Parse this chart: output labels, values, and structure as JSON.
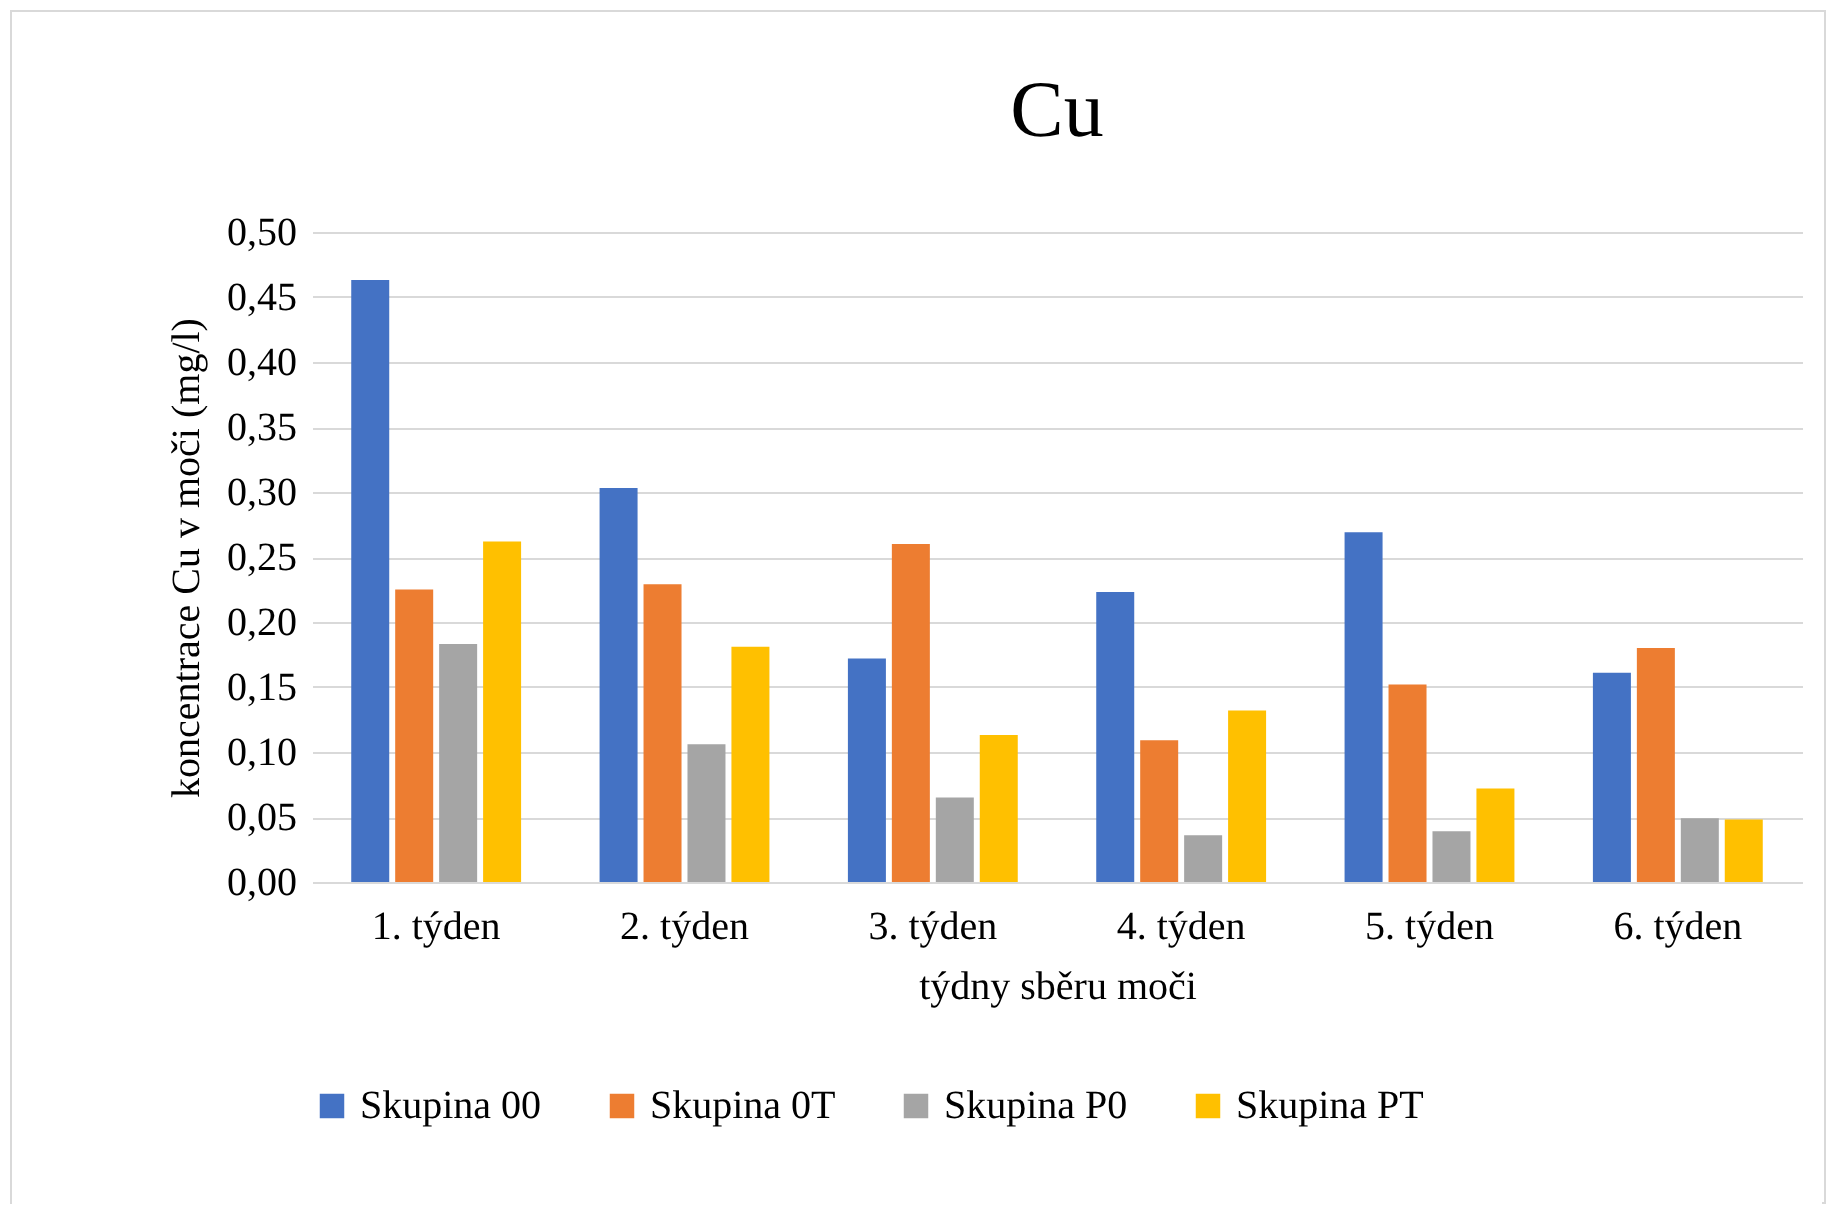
{
  "chart_data": {
    "type": "bar",
    "title": "Cu",
    "xlabel": "týdny sběru moči",
    "ylabel": "koncentrace Cu v moči (mg/l)",
    "categories": [
      "1. týden",
      "2. týden",
      "3. týden",
      "4. týden",
      "5. týden",
      "6. týden"
    ],
    "series": [
      {
        "name": "Skupina 00",
        "color": "#4472c4",
        "values": [
          0.463,
          0.303,
          0.172,
          0.223,
          0.269,
          0.161
        ]
      },
      {
        "name": "Skupina 0T",
        "color": "#ed7d31",
        "values": [
          0.225,
          0.229,
          0.26,
          0.109,
          0.152,
          0.18
        ]
      },
      {
        "name": "Skupina P0",
        "color": "#a5a5a5",
        "values": [
          0.183,
          0.106,
          0.065,
          0.036,
          0.039,
          0.049
        ]
      },
      {
        "name": "Skupina PT",
        "color": "#ffc000",
        "values": [
          0.262,
          0.181,
          0.113,
          0.132,
          0.072,
          0.048
        ]
      }
    ],
    "ylim": [
      0,
      0.5
    ],
    "yticks": [
      {
        "value": 0,
        "label": "0,00"
      },
      {
        "value": 0.05,
        "label": "0,05"
      },
      {
        "value": 0.1,
        "label": "0,10"
      },
      {
        "value": 0.15,
        "label": "0,15"
      },
      {
        "value": 0.2,
        "label": "0,20"
      },
      {
        "value": 0.25,
        "label": "0,25"
      },
      {
        "value": 0.3,
        "label": "0,30"
      },
      {
        "value": 0.35,
        "label": "0,35"
      },
      {
        "value": 0.4,
        "label": "0,40"
      },
      {
        "value": 0.45,
        "label": "0,45"
      },
      {
        "value": 0.5,
        "label": "0,50"
      }
    ],
    "grid": "y",
    "legend": "bottom"
  }
}
